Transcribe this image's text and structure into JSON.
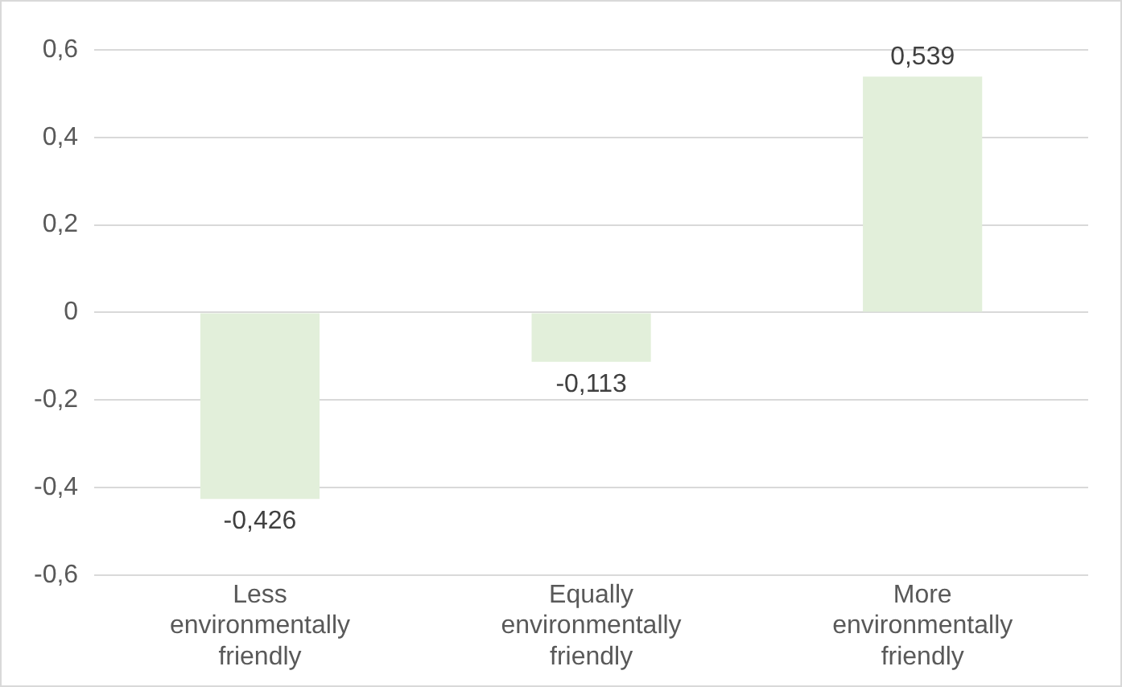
{
  "chart_data": {
    "type": "bar",
    "categories": [
      "Less environmentally friendly",
      "Equally environmentally friendly",
      "More environmentally friendly"
    ],
    "values": [
      -0.426,
      -0.113,
      0.539
    ],
    "value_labels": [
      "-0,426",
      "-0,113",
      "0,539"
    ],
    "color": "#e2efda",
    "ylim": [
      -0.6,
      0.6
    ],
    "yticks": [
      {
        "value": -0.6,
        "label": "-0,6"
      },
      {
        "value": -0.4,
        "label": "-0,4"
      },
      {
        "value": -0.2,
        "label": "-0,2"
      },
      {
        "value": 0,
        "label": "0"
      },
      {
        "value": 0.2,
        "label": "0,2"
      },
      {
        "value": 0.4,
        "label": "0,4"
      },
      {
        "value": 0.6,
        "label": "0,6"
      }
    ],
    "grid": "y",
    "legend": false
  }
}
